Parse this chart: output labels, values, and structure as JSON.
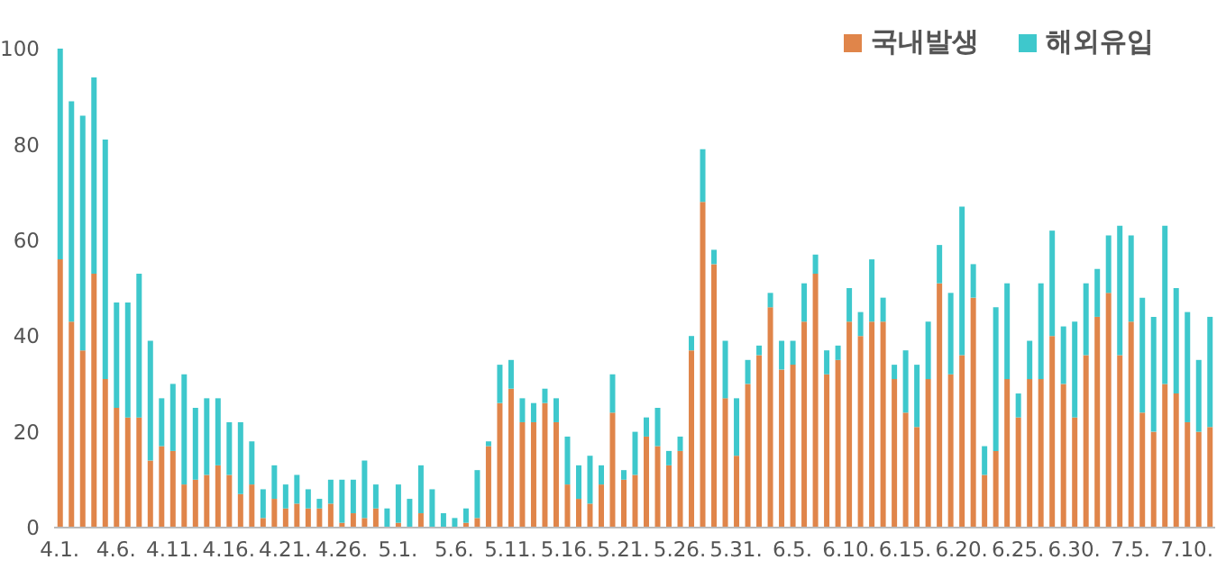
{
  "chart_data": {
    "type": "bar",
    "stacked": true,
    "categories": [
      "4.1.",
      null,
      null,
      null,
      null,
      "4.6.",
      null,
      null,
      null,
      null,
      "4.11.",
      null,
      null,
      null,
      null,
      "4.16.",
      null,
      null,
      null,
      null,
      "4.21.",
      null,
      null,
      null,
      null,
      "4.26.",
      null,
      null,
      null,
      null,
      "5.1.",
      null,
      null,
      null,
      null,
      "5.6.",
      null,
      null,
      null,
      null,
      "5.11.",
      null,
      null,
      null,
      null,
      "5.16.",
      null,
      null,
      null,
      null,
      "5.21.",
      null,
      null,
      null,
      null,
      "5.26.",
      null,
      null,
      null,
      null,
      "5.31.",
      null,
      null,
      null,
      null,
      "6.5.",
      null,
      null,
      null,
      null,
      "6.10.",
      null,
      null,
      null,
      null,
      "6.15.",
      null,
      null,
      null,
      null,
      "6.20.",
      null,
      null,
      null,
      null,
      "6.25.",
      null,
      null,
      null,
      null,
      "6.30.",
      null,
      null,
      null,
      null,
      "7.5.",
      null,
      null,
      null,
      null,
      "7.10.",
      null,
      null
    ],
    "series": [
      {
        "name": "국내발생",
        "color": "#e0854a",
        "values": [
          56,
          43,
          37,
          53,
          31,
          25,
          23,
          23,
          14,
          17,
          16,
          9,
          10,
          11,
          13,
          11,
          7,
          9,
          2,
          6,
          4,
          5,
          4,
          4,
          5,
          1,
          3,
          2,
          4,
          0,
          1,
          0,
          3,
          0,
          0,
          0,
          1,
          2,
          17,
          26,
          29,
          22,
          22,
          26,
          22,
          9,
          6,
          5,
          9,
          24,
          10,
          11,
          19,
          17,
          13,
          16,
          37,
          68,
          55,
          27,
          15,
          30,
          36,
          46,
          33,
          34,
          43,
          53,
          32,
          35,
          43,
          40,
          43,
          43,
          31,
          24,
          21,
          31,
          51,
          32,
          36,
          48,
          11,
          16,
          31,
          23,
          31,
          31,
          40,
          30,
          23,
          36,
          44,
          49,
          36,
          43,
          24,
          20,
          30,
          28,
          22,
          20,
          21
        ]
      },
      {
        "name": "해외유입",
        "color": "#3ec8cc",
        "values": [
          44,
          46,
          49,
          41,
          50,
          22,
          24,
          30,
          25,
          10,
          14,
          23,
          15,
          16,
          14,
          11,
          15,
          9,
          6,
          7,
          5,
          6,
          4,
          2,
          5,
          9,
          7,
          12,
          5,
          4,
          8,
          6,
          10,
          8,
          3,
          2,
          3,
          10,
          1,
          8,
          6,
          5,
          4,
          3,
          5,
          10,
          7,
          10,
          4,
          8,
          2,
          9,
          4,
          8,
          3,
          3,
          3,
          11,
          3,
          12,
          12,
          5,
          2,
          3,
          6,
          5,
          8,
          4,
          5,
          3,
          7,
          5,
          13,
          5,
          3,
          13,
          13,
          12,
          8,
          17,
          31,
          7,
          6,
          30,
          20,
          5,
          8,
          20,
          22,
          12,
          20,
          15,
          10,
          12,
          27,
          18,
          24,
          24,
          33,
          22,
          23,
          15,
          23
        ]
      }
    ],
    "ylim": [
      0,
      100
    ],
    "yticks": [
      0,
      20,
      40,
      60,
      80,
      100
    ],
    "grid": false,
    "legend": "top right"
  }
}
